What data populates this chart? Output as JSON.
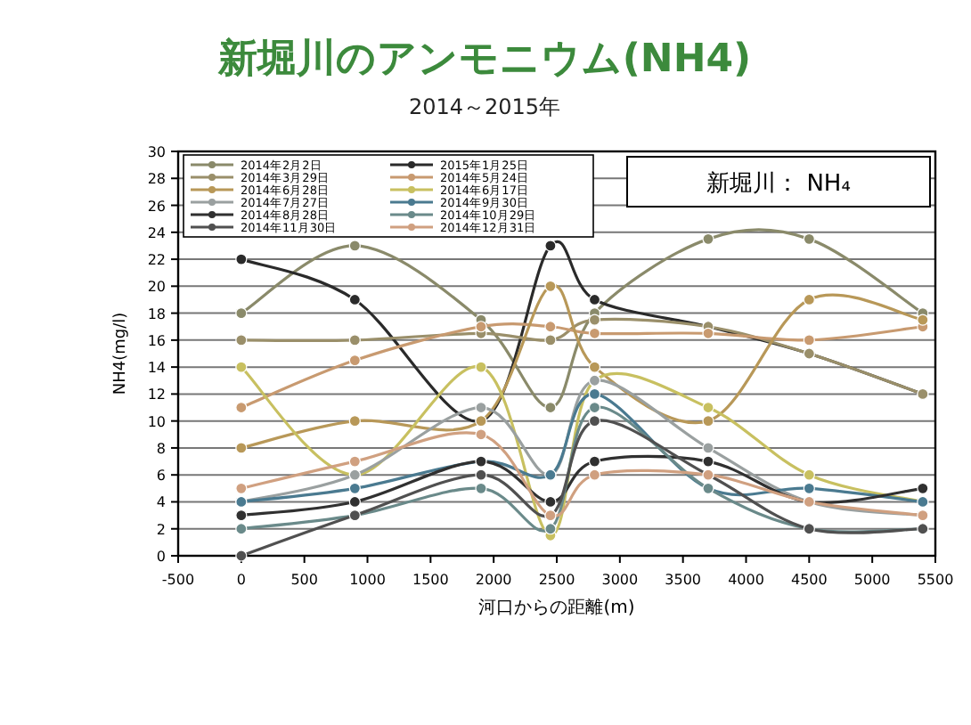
{
  "chart_data": {
    "type": "line",
    "title": "新堀川のアンモニウム(NH4)",
    "subtitle": "2014～2015年",
    "xlabel": "河口からの距離(m)",
    "ylabel": "NH4(mg/l)",
    "annotations": [
      "新堀川： NH₄"
    ],
    "x": [
      0,
      900,
      1900,
      2450,
      2800,
      3700,
      4500,
      5400
    ],
    "xlim": [
      -500,
      5500
    ],
    "xticks": [
      -500,
      0,
      500,
      1000,
      1500,
      2000,
      2500,
      3000,
      3500,
      4000,
      4500,
      5000,
      5500
    ],
    "ylim": [
      0,
      30
    ],
    "yticks": [
      0,
      2,
      4,
      6,
      8,
      10,
      12,
      14,
      16,
      18,
      20,
      22,
      24,
      26,
      28,
      30
    ],
    "grid": "y",
    "legend": "top left",
    "marker": "circle",
    "line_style": "solid",
    "series": [
      {
        "name": "2014年2月2日",
        "color": "#8a8a6a",
        "values": [
          18,
          23,
          17.5,
          11,
          18,
          23.5,
          23.5,
          18
        ]
      },
      {
        "name": "2015年1月25日",
        "color": "#2a2a2a",
        "values": [
          22,
          19,
          10,
          23,
          19,
          17,
          15,
          12
        ]
      },
      {
        "name": "2014年3月29日",
        "color": "#9a8f6a",
        "values": [
          16,
          16,
          16.5,
          16,
          17.5,
          17,
          15,
          12
        ]
      },
      {
        "name": "2014年5月24日",
        "color": "#c89a70",
        "values": [
          11,
          14.5,
          17,
          17,
          16.5,
          16.5,
          16,
          17
        ]
      },
      {
        "name": "2014年6月28日",
        "color": "#b89858",
        "values": [
          8,
          10,
          10,
          20,
          14,
          10,
          19,
          17.5
        ]
      },
      {
        "name": "2014年6月17日",
        "color": "#c8c060",
        "values": [
          14,
          6,
          14,
          1.5,
          13,
          11,
          6,
          4
        ]
      },
      {
        "name": "2014年7月27日",
        "color": "#9aa0a0",
        "values": [
          4,
          6,
          11,
          6,
          13,
          8,
          4,
          3
        ]
      },
      {
        "name": "2014年9月30日",
        "color": "#4a7a90",
        "values": [
          4,
          5,
          7,
          6,
          12,
          5,
          5,
          4
        ]
      },
      {
        "name": "2014年8月28日",
        "color": "#303030",
        "values": [
          3,
          4,
          7,
          4,
          7,
          7,
          4,
          5
        ]
      },
      {
        "name": "2014年10月29日",
        "color": "#6a8a8a",
        "values": [
          2,
          3,
          5,
          2,
          11,
          5,
          2,
          2
        ]
      },
      {
        "name": "2014年11月30日",
        "color": "#505050",
        "values": [
          0,
          3,
          6,
          3,
          10,
          6,
          2,
          2
        ]
      },
      {
        "name": "2014年12月31日",
        "color": "#d0a080",
        "values": [
          5,
          7,
          9,
          3,
          6,
          6,
          4,
          3
        ]
      }
    ]
  }
}
